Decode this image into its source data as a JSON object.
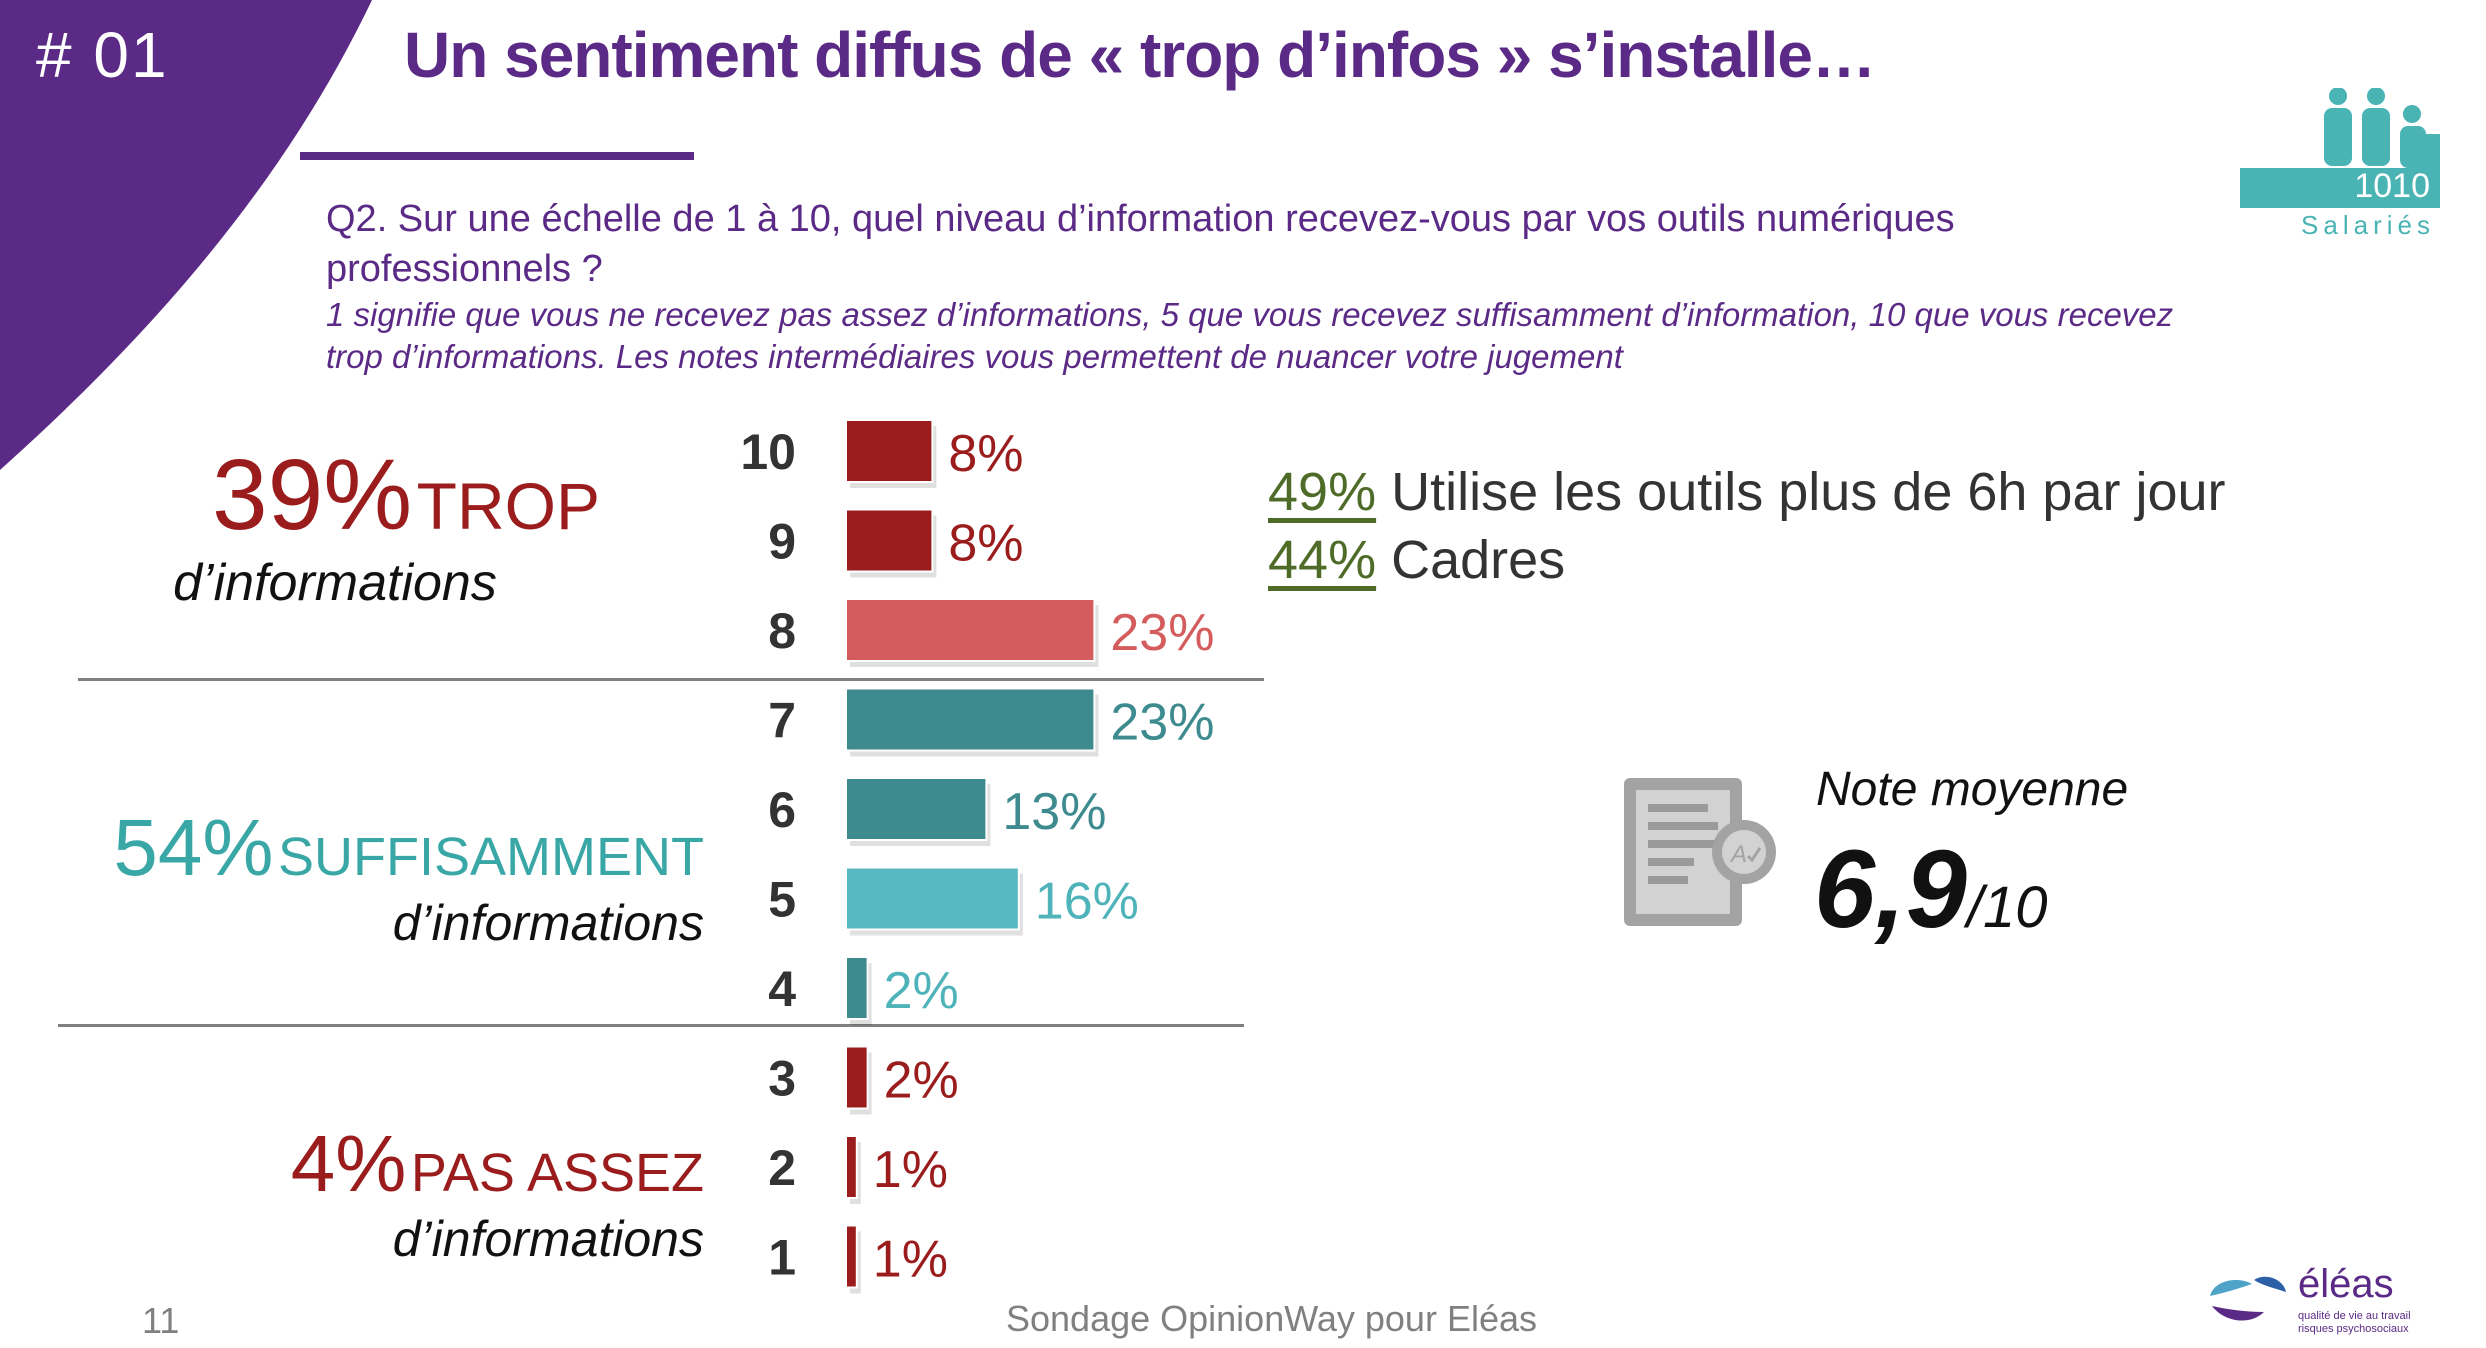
{
  "header": {
    "slide_number": "# 01",
    "title": "Un sentiment diffus de « trop d’infos » s’installe…"
  },
  "question": {
    "text": "Q2. Sur une échelle de 1 à 10, quel niveau d’information recevez-vous par vos outils numériques professionnels ?",
    "note": "1 signifie que vous ne recevez pas assez d’informations, 5 que vous recevez suffisamment d’information, 10 que vous recevez trop d’informations. Les notes intermédiaires vous permettent de nuancer votre jugement"
  },
  "groups": {
    "trop": {
      "pct": "39%",
      "label": "TROP",
      "sub": "d’informations"
    },
    "suffisamment": {
      "pct": "54%",
      "label": "SUFFISAMMENT",
      "sub": "d’informations"
    },
    "pas_assez": {
      "pct": "4%",
      "label": "PAS ASSEZ",
      "sub": "d’informations"
    }
  },
  "chart_data": {
    "type": "bar",
    "orientation": "horizontal",
    "categories": [
      "10",
      "9",
      "8",
      "7",
      "6",
      "5",
      "4",
      "3",
      "2",
      "1"
    ],
    "values": [
      8,
      8,
      23,
      23,
      13,
      16,
      2,
      2,
      1,
      1
    ],
    "value_labels": [
      "8%",
      "8%",
      "23%",
      "23%",
      "13%",
      "16%",
      "2%",
      "2%",
      "1%",
      "1%"
    ],
    "colors": [
      "#9b1c1c",
      "#9b1c1c",
      "#d45c5c",
      "#3d8a8f",
      "#3d8a8f",
      "#56b8c0",
      "#3d8a8f",
      "#9b1c1c",
      "#9b1c1c",
      "#9b1c1c"
    ],
    "label_colors": [
      "#9b1c1c",
      "#9b1c1c",
      "#d45c5c",
      "#3d8a8f",
      "#3d8a8f",
      "#4fb3ba",
      "#4fb3ba",
      "#9b1c1c",
      "#9b1c1c",
      "#9b1c1c"
    ],
    "title": "",
    "xlabel": "",
    "ylabel": "",
    "xlim": [
      0,
      25
    ]
  },
  "stats": [
    {
      "pct": "49%",
      "text": "Utilise les outils plus de 6h par jour"
    },
    {
      "pct": "44%",
      "text": "Cadres"
    }
  ],
  "average": {
    "label": "Note moyenne",
    "value": "6,9",
    "scale": "/10"
  },
  "badge": {
    "count": "1010",
    "label": "Salariés"
  },
  "footer": {
    "page_number": "11",
    "source": "Sondage OpinionWay pour Eléas",
    "logo_name": "éléas",
    "logo_tagline": "qualité de vie au travail risques psychosociaux"
  },
  "colors": {
    "brand_purple": "#5b2a86",
    "dark_red": "#9b1c1c",
    "teal": "#3aa7a7",
    "olive": "#4f6b28",
    "gray": "#808080"
  }
}
